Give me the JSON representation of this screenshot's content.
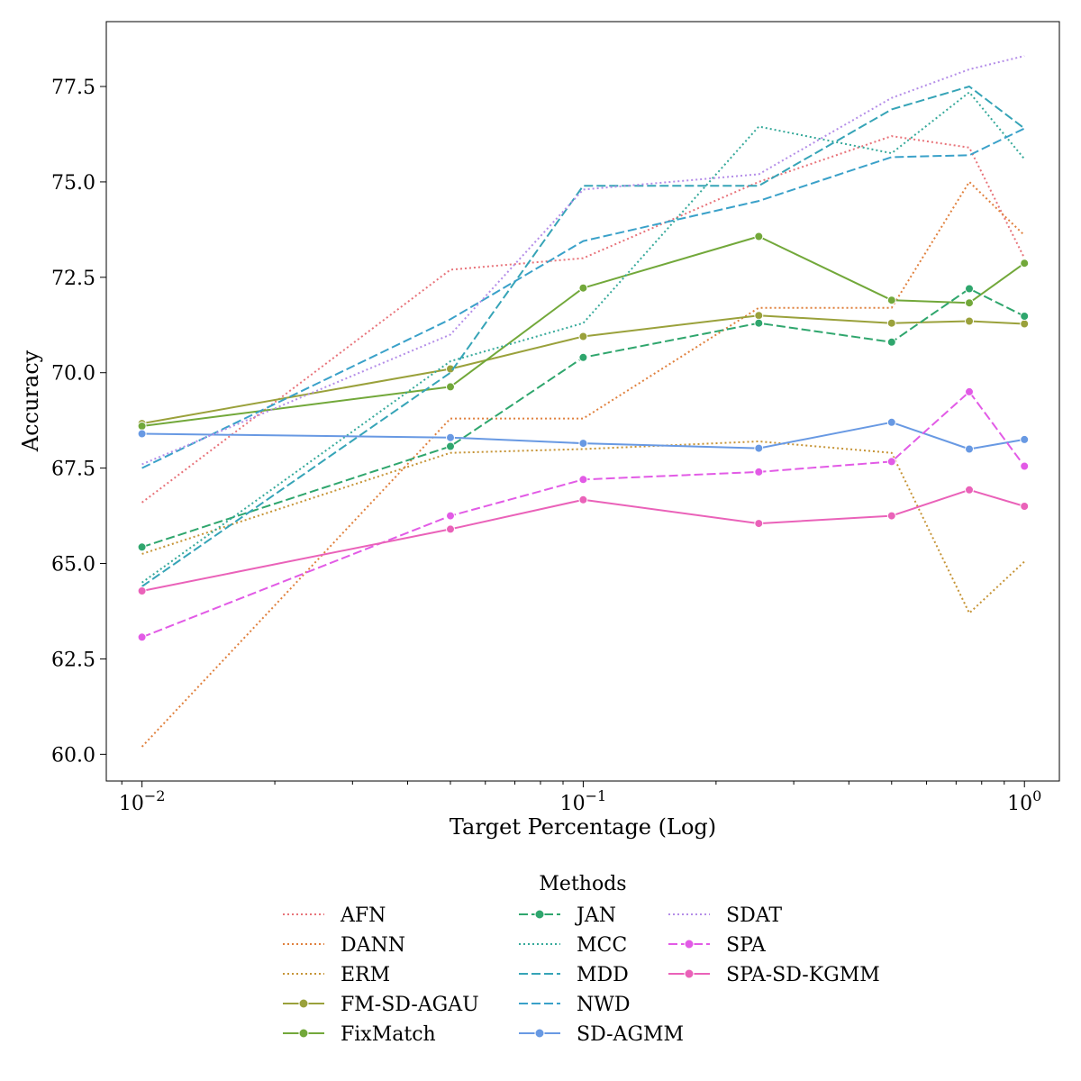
{
  "chart_data": {
    "type": "line",
    "title": "",
    "xlabel": "Target Percentage (Log)",
    "ylabel": "Accuracy",
    "xscale": "log",
    "x": [
      0.01,
      0.05,
      0.1,
      0.25,
      0.5,
      0.75,
      1.0
    ],
    "xlim": [
      0.0083,
      1.2
    ],
    "ylim": [
      59.3,
      79.2
    ],
    "xticks": [
      {
        "value": 0.01,
        "base": "10",
        "exp": "−2"
      },
      {
        "value": 0.1,
        "base": "10",
        "exp": "−1"
      },
      {
        "value": 1.0,
        "base": "10",
        "exp": "0"
      }
    ],
    "yticks": [
      {
        "value": 60.0,
        "label": "60.0"
      },
      {
        "value": 62.5,
        "label": "62.5"
      },
      {
        "value": 65.0,
        "label": "65.0"
      },
      {
        "value": 67.5,
        "label": "67.5"
      },
      {
        "value": 70.0,
        "label": "70.0"
      },
      {
        "value": 72.5,
        "label": "72.5"
      },
      {
        "value": 75.0,
        "label": "75.0"
      },
      {
        "value": 77.5,
        "label": "77.5"
      }
    ],
    "legend": {
      "title": "Methods",
      "placement": "bottom-center",
      "columns": 3
    },
    "series": [
      {
        "name": "AFN",
        "color": "#e8737a",
        "style": "dotted",
        "marker": false,
        "values": [
          66.6,
          72.7,
          73.0,
          75.0,
          76.2,
          75.9,
          73.0
        ]
      },
      {
        "name": "DANN",
        "color": "#e0803d",
        "style": "dotted",
        "marker": false,
        "values": [
          60.2,
          68.8,
          68.8,
          71.7,
          71.7,
          75.0,
          73.6
        ]
      },
      {
        "name": "ERM",
        "color": "#c69436",
        "style": "dotted",
        "marker": false,
        "values": [
          65.25,
          67.9,
          68.0,
          68.2,
          67.9,
          63.7,
          65.05
        ]
      },
      {
        "name": "FM-SD-AGAU",
        "color": "#9aa13b",
        "style": "solid",
        "marker": true,
        "values": [
          68.67,
          70.1,
          70.95,
          71.5,
          71.3,
          71.35,
          71.28
        ]
      },
      {
        "name": "FixMatch",
        "color": "#72a83a",
        "style": "solid",
        "marker": true,
        "values": [
          68.6,
          69.63,
          72.22,
          73.57,
          71.9,
          71.83,
          72.87
        ]
      },
      {
        "name": "JAN",
        "color": "#2fa66d",
        "style": "dashed",
        "marker": true,
        "values": [
          65.43,
          68.07,
          70.4,
          71.3,
          70.8,
          72.2,
          71.48
        ]
      },
      {
        "name": "MCC",
        "color": "#35a99a",
        "style": "dotted",
        "marker": false,
        "values": [
          64.5,
          70.3,
          71.3,
          76.45,
          75.75,
          77.35,
          75.6
        ]
      },
      {
        "name": "MDD",
        "color": "#36a4b7",
        "style": "dashed",
        "marker": false,
        "values": [
          64.4,
          70.0,
          74.9,
          74.9,
          76.9,
          77.5,
          76.4
        ]
      },
      {
        "name": "NWD",
        "color": "#3aa1c9",
        "style": "dashed",
        "marker": false,
        "values": [
          67.5,
          71.4,
          73.45,
          74.5,
          75.65,
          75.7,
          76.4
        ]
      },
      {
        "name": "SD-AGMM",
        "color": "#6899e3",
        "style": "solid",
        "marker": true,
        "values": [
          68.4,
          68.3,
          68.15,
          68.02,
          68.7,
          68.0,
          68.25
        ]
      },
      {
        "name": "SDAT",
        "color": "#b48de8",
        "style": "dotted",
        "marker": false,
        "values": [
          67.6,
          71.0,
          74.8,
          75.2,
          77.2,
          77.95,
          78.3
        ]
      },
      {
        "name": "SPA",
        "color": "#e25be6",
        "style": "dashed",
        "marker": true,
        "values": [
          63.07,
          66.25,
          67.2,
          67.4,
          67.67,
          69.5,
          67.55
        ]
      },
      {
        "name": "SPA-SD-KGMM",
        "color": "#ea62b9",
        "style": "solid",
        "marker": true,
        "values": [
          64.28,
          65.9,
          66.67,
          66.05,
          66.25,
          66.93,
          66.5
        ]
      }
    ]
  }
}
